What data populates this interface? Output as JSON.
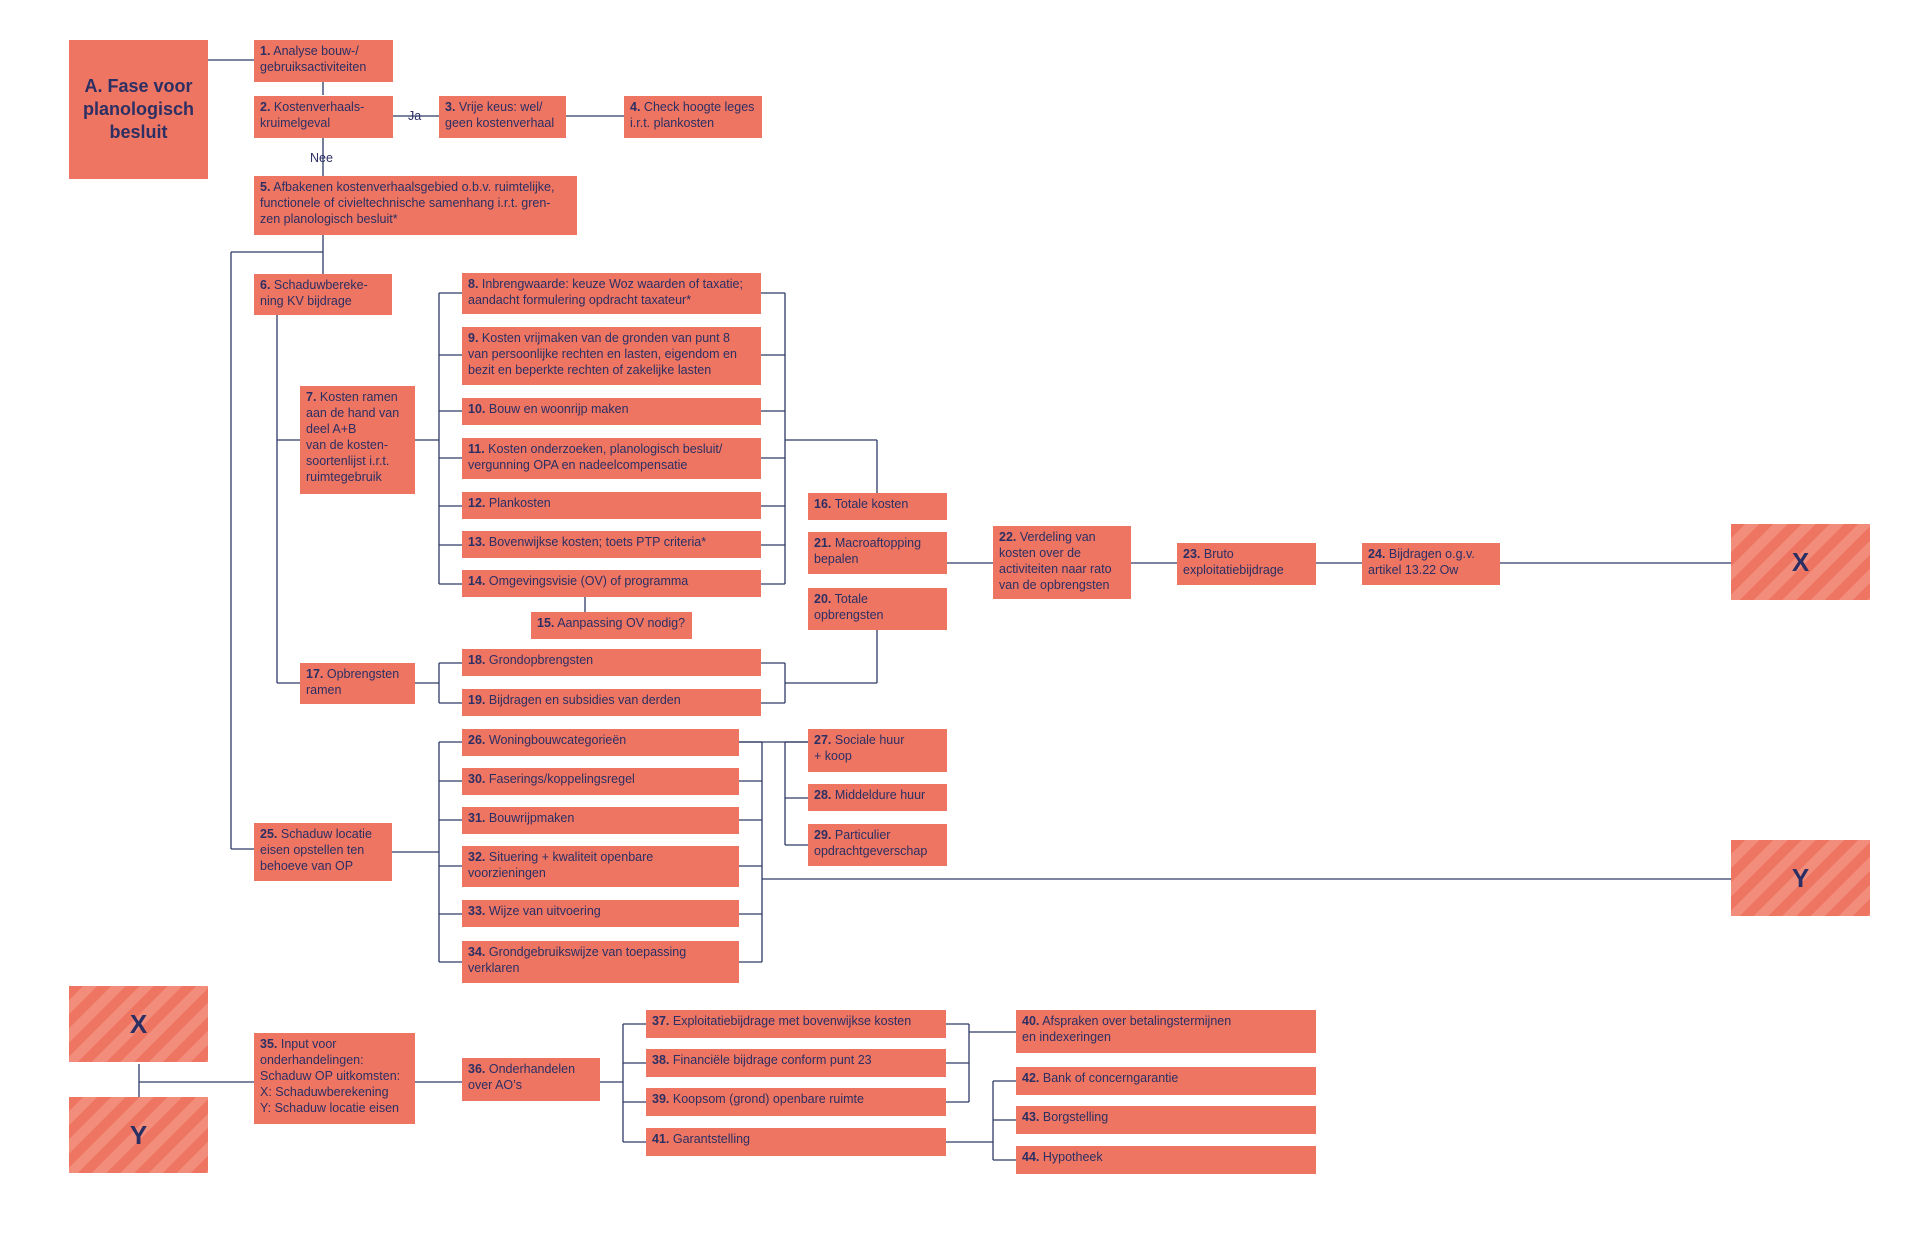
{
  "phase_title": "A. Fase voor\nplanologisch\nbesluit",
  "connector_labels": {
    "ja": "Ja",
    "nee": "Nee"
  },
  "markers": {
    "x": "X",
    "y": "Y"
  },
  "steps": {
    "s1": {
      "num": "1.",
      "text": "Analyse bouw-/\ngebruiksactiviteiten"
    },
    "s2": {
      "num": "2.",
      "text": "Kostenverhaals-\nkruimelgeval"
    },
    "s3": {
      "num": "3.",
      "text": "Vrije keus: wel/\ngeen kostenverhaal"
    },
    "s4": {
      "num": "4.",
      "text": "Check hoogte leges\ni.r.t. plankosten"
    },
    "s5": {
      "num": "5.",
      "text": "Afbakenen kostenverhaalsgebied o.b.v. ruimtelijke,\nfunctionele of civieltechnische samenhang i.r.t. gren-\nzen planologisch besluit*"
    },
    "s6": {
      "num": "6.",
      "text": "Schaduwbereke-\nning KV bijdrage"
    },
    "s7": {
      "num": "7.",
      "text": "Kosten ramen\naan de hand van\ndeel A+B\nvan de kosten-\nsoortenlijst i.r.t.\nruimtegebruik"
    },
    "s8": {
      "num": "8.",
      "text": "Inbrengwaarde: keuze Woz waarden of taxatie;\naandacht formulering opdracht taxateur*"
    },
    "s9": {
      "num": "9.",
      "text": "Kosten vrijmaken van de gronden van punt 8\nvan persoonlijke rechten en lasten, eigendom en\nbezit en beperkte rechten of zakelijke lasten"
    },
    "s10": {
      "num": "10.",
      "text": "Bouw en woonrijp maken"
    },
    "s11": {
      "num": "11.",
      "text": "Kosten onderzoeken, planologisch besluit/\nvergunning OPA en nadeelcompensatie"
    },
    "s12": {
      "num": "12.",
      "text": "Plankosten"
    },
    "s13": {
      "num": "13.",
      "text": "Bovenwijkse kosten; toets PTP criteria*"
    },
    "s14": {
      "num": "14.",
      "text": "Omgevingsvisie (OV) of programma"
    },
    "s15": {
      "num": "15.",
      "text": "Aanpassing OV nodig?"
    },
    "s16": {
      "num": "16.",
      "text": "Totale kosten"
    },
    "s17": {
      "num": "17.",
      "text": "Opbrengsten\nramen"
    },
    "s18": {
      "num": "18.",
      "text": "Grondopbrengsten"
    },
    "s19": {
      "num": "19.",
      "text": "Bijdragen en subsidies van derden"
    },
    "s20": {
      "num": "20.",
      "text": "Totale\nopbrengsten"
    },
    "s21": {
      "num": "21.",
      "text": "Macroaftopping\nbepalen"
    },
    "s22": {
      "num": "22.",
      "text": "Verdeling van\nkosten over de\nactiviteiten naar rato\nvan de opbrengsten"
    },
    "s23": {
      "num": "23.",
      "text": "Bruto\nexploitatiebijdrage"
    },
    "s24": {
      "num": "24.",
      "text": "Bijdragen o.g.v.\nartikel 13.22 Ow"
    },
    "s25": {
      "num": "25.",
      "text": "Schaduw locatie\neisen opstellen ten\nbehoeve van OP"
    },
    "s26": {
      "num": "26.",
      "text": "Woningbouwcategorieën"
    },
    "s27": {
      "num": "27.",
      "text": "Sociale huur\n+ koop"
    },
    "s28": {
      "num": "28.",
      "text": "Middeldure huur"
    },
    "s29": {
      "num": "29.",
      "text": "Particulier\nopdrachtgeverschap"
    },
    "s30": {
      "num": "30.",
      "text": "Faserings/koppelingsregel"
    },
    "s31": {
      "num": "31.",
      "text": "Bouwrijpmaken"
    },
    "s32": {
      "num": "32.",
      "text": "Situering + kwaliteit openbare\nvoorzieningen"
    },
    "s33": {
      "num": "33.",
      "text": "Wijze van uitvoering"
    },
    "s34": {
      "num": "34.",
      "text": "Grondgebruikswijze van toepassing\nverklaren"
    },
    "s35": {
      "num": "35.",
      "text": "Input voor\nonderhandelingen:\nSchaduw OP uitkomsten:\nX: Schaduwberekening\nY: Schaduw locatie eisen"
    },
    "s36": {
      "num": "36.",
      "text": "Onderhandelen\nover AO’s"
    },
    "s37": {
      "num": "37.",
      "text": "Exploitatiebijdrage met bovenwijkse kosten"
    },
    "s38": {
      "num": "38.",
      "text": "Financiële bijdrage conform punt 23"
    },
    "s39": {
      "num": "39.",
      "text": "Koopsom (grond) openbare ruimte"
    },
    "s40": {
      "num": "40.",
      "text": "Afspraken over betalingstermijnen\nen indexeringen"
    },
    "s41": {
      "num": "41.",
      "text": "Garantstelling"
    },
    "s42": {
      "num": "42.",
      "text": "Bank of concerngarantie"
    },
    "s43": {
      "num": "43.",
      "text": "Borgstelling"
    },
    "s44": {
      "num": "44.",
      "text": "Hypotheek"
    }
  },
  "colors": {
    "box": "#ef7563",
    "text": "#2b2f63",
    "line": "#2e3a66"
  }
}
